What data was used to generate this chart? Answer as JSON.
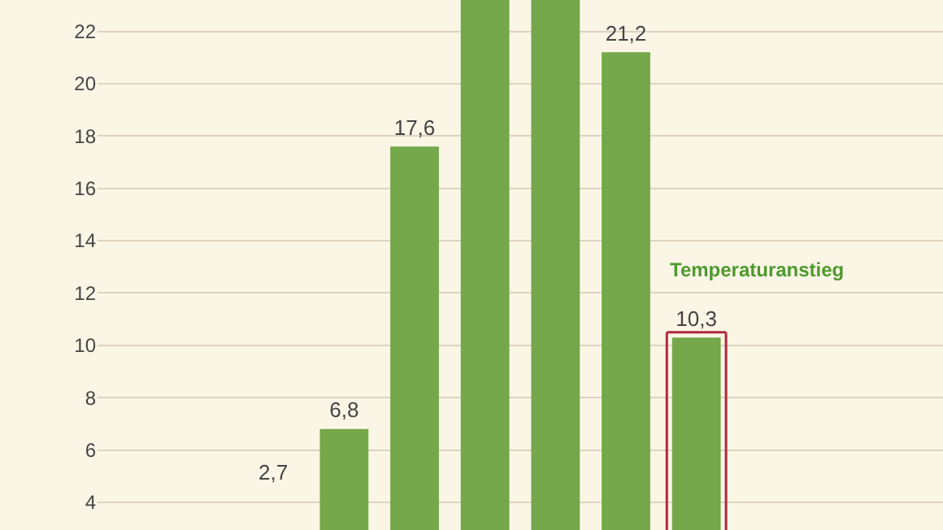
{
  "chart_data": {
    "type": "bar",
    "categories": [
      null,
      null,
      null,
      null,
      null,
      null,
      null,
      null,
      null,
      null,
      null,
      null
    ],
    "values": [
      null,
      null,
      null,
      6.8,
      17.6,
      23.2,
      23.2,
      21.2,
      10.3,
      null,
      null,
      null
    ],
    "value_labels": [
      null,
      null,
      null,
      "6,8",
      "17,6",
      null,
      null,
      "21,2",
      "10,3",
      null,
      null,
      null
    ],
    "color": "#74a84a",
    "ylim": [
      2.94,
      23.2
    ],
    "yticks": [
      4,
      6,
      8,
      10,
      12,
      14,
      16,
      18,
      20,
      22
    ],
    "grid": "y",
    "legend": false,
    "tick_labels": "y",
    "annotations": [
      "Temperaturanstieg",
      "2,7"
    ]
  }
}
